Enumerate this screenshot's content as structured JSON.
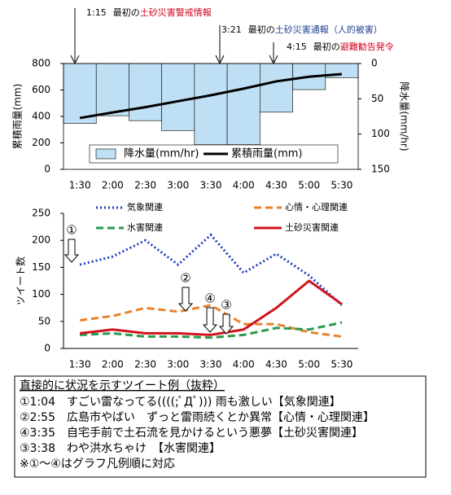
{
  "chart_data": [
    {
      "type": "combo",
      "annotations": [
        {
          "time": "1:15",
          "prefix": "最初の",
          "highlight": "土砂災害警戒情報",
          "color": "#d0021b"
        },
        {
          "time": "3:21",
          "prefix": "最初の",
          "highlight": "土砂災害通報",
          "suffix": "（人的被害）",
          "color": "#1f3f8f"
        },
        {
          "time": "4:15",
          "prefix": "最初の",
          "highlight": "避難勧告発令",
          "color": "#d0021b"
        }
      ],
      "categories": [
        "1:30",
        "2:00",
        "2:30",
        "3:00",
        "3:30",
        "4:00",
        "4:30",
        "5:00",
        "5:30"
      ],
      "series": [
        {
          "name": "降水量(mm/hr)",
          "type": "bar",
          "axis": "y2",
          "color": "#bfe0f4",
          "values": [
            85,
            74,
            81,
            95,
            115,
            115,
            69,
            37,
            20
          ]
        },
        {
          "name": "累積雨量(mm)",
          "type": "line",
          "color": "#000000",
          "values": [
            388,
            430,
            470,
            515,
            560,
            610,
            665,
            700,
            720
          ]
        }
      ],
      "ylabel": "累積雨量(mm)",
      "ylim": [
        0,
        800
      ],
      "yticks": [
        0,
        200,
        400,
        600,
        800
      ],
      "y2label": "降水量(mm/hr)",
      "y2lim": [
        0,
        150
      ],
      "y2ticks": [
        0,
        50,
        100,
        150
      ],
      "y2_inverted": true
    },
    {
      "type": "line",
      "categories": [
        "1:30",
        "2:00",
        "2:30",
        "3:00",
        "3:30",
        "4:00",
        "4:30",
        "5:00",
        "5:30"
      ],
      "series": [
        {
          "name": "気象関連",
          "color": "#1f3fbf",
          "style": "dotted",
          "values": [
            155,
            170,
            200,
            155,
            210,
            140,
            175,
            135,
            80
          ]
        },
        {
          "name": "心情・心理関連",
          "color": "#e8822a",
          "style": "dashed",
          "values": [
            52,
            60,
            75,
            68,
            80,
            45,
            45,
            30,
            22
          ]
        },
        {
          "name": "水害関連",
          "color": "#2a9a4a",
          "style": "dashed",
          "values": [
            25,
            28,
            22,
            22,
            20,
            25,
            38,
            35,
            48
          ]
        },
        {
          "name": "土砂災害関連",
          "color": "#d0141e",
          "style": "solid",
          "values": [
            28,
            35,
            28,
            28,
            25,
            35,
            75,
            125,
            82
          ]
        }
      ],
      "ylabel": "ツイート数",
      "ylim": [
        0,
        250
      ],
      "yticks": [
        0,
        50,
        100,
        150,
        200,
        250
      ],
      "markers": [
        "①",
        "②",
        "④",
        "③"
      ]
    }
  ],
  "note": {
    "title": "直接的に状況を示すツイート例（抜粋）",
    "lines": [
      "①1:04　すごい雷なってる((((;ﾟДﾟ))) 雨も激しい【気象関連】",
      "②2:55　広島市やばい　ずっと雷雨続くとか異常【心情・心理関連】",
      "④3:35　自宅手前で土石流を見かけるという悪夢【土砂災害関連】",
      "③3:38　わや洪水ちゃけ　【水害関連】",
      "※①～④はグラフ凡例順に対応"
    ]
  }
}
